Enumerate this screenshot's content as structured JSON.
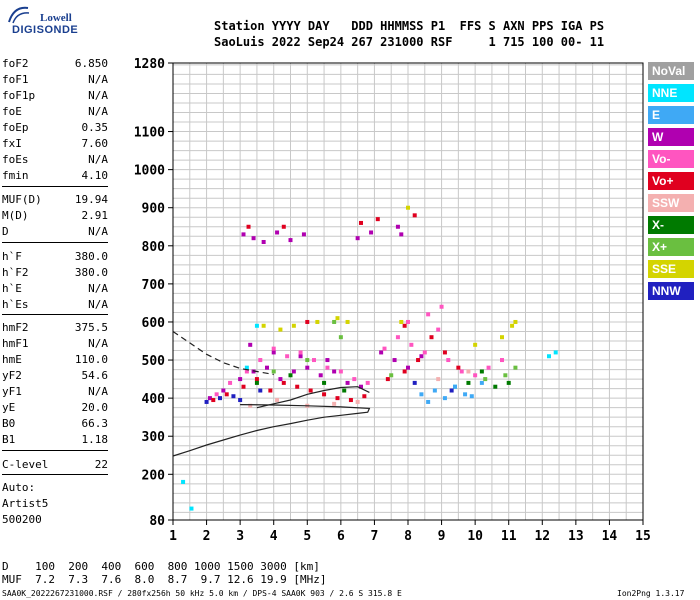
{
  "logo": {
    "line1": "Lowell",
    "line2": "DIGISONDE",
    "color": "#1a3f8f"
  },
  "header": {
    "line1": "Station YYYY DAY   DDD HHMMSS P1  FFS S AXN PPS IGA PS",
    "line2": "SaoLuis 2022 Sep24 267 231000 RSF     1 715 100 00- 11"
  },
  "params": [
    {
      "label": "foF2",
      "value": "6.850"
    },
    {
      "label": "foF1",
      "value": "N/A"
    },
    {
      "label": "foF1p",
      "value": "N/A"
    },
    {
      "label": "foE",
      "value": "N/A"
    },
    {
      "label": "foEp",
      "value": "0.35"
    },
    {
      "label": "fxI",
      "value": "7.60"
    },
    {
      "label": "foEs",
      "value": "N/A"
    },
    {
      "label": "fmin",
      "value": "4.10"
    },
    {
      "label": "MUF(D)",
      "value": "19.94"
    },
    {
      "label": "M(D)",
      "value": "2.91"
    },
    {
      "label": "D",
      "value": "N/A"
    },
    {
      "label": "h`F",
      "value": "380.0"
    },
    {
      "label": "h`F2",
      "value": "380.0"
    },
    {
      "label": "h`E",
      "value": "N/A"
    },
    {
      "label": "h`Es",
      "value": "N/A"
    },
    {
      "label": "hmF2",
      "value": "375.5"
    },
    {
      "label": "hmF1",
      "value": "N/A"
    },
    {
      "label": "hmE",
      "value": "110.0"
    },
    {
      "label": "yF2",
      "value": "54.6"
    },
    {
      "label": "yF1",
      "value": "N/A"
    },
    {
      "label": "yE",
      "value": "20.0"
    },
    {
      "label": "B0",
      "value": "66.3"
    },
    {
      "label": "B1",
      "value": "1.18"
    },
    {
      "label": "C-level",
      "value": "22"
    }
  ],
  "autoscaling": {
    "line1": "Auto:",
    "line2": "Artist5",
    "line3": "500200"
  },
  "legend": [
    {
      "label": "NoVal",
      "color": "#a0a0a0"
    },
    {
      "label": "NNE",
      "color": "#00e5ff"
    },
    {
      "label": "E",
      "color": "#3fa9f5"
    },
    {
      "label": "W",
      "color": "#b000b0"
    },
    {
      "label": "Vo-",
      "color": "#ff55c0"
    },
    {
      "label": "Vo+",
      "color": "#e0001f"
    },
    {
      "label": "SSW",
      "color": "#f4b0b0"
    },
    {
      "label": "X-",
      "color": "#007a00"
    },
    {
      "label": "X+",
      "color": "#6abf40"
    },
    {
      "label": "SSE",
      "color": "#d4d400"
    },
    {
      "label": "NNW",
      "color": "#2020c0"
    }
  ],
  "bottom": {
    "d_row": "D    100  200  400  600  800 1000 1500 3000 [km]",
    "muf_row": "MUF  7.2  7.3  7.6  8.0  8.7  9.7 12.6 19.9 [MHz]"
  },
  "footer": {
    "left": "SAA0K_2022267231000.RSF / 280fx256h 50 kHz 5.0 km / DPS-4 SAA0K 903 / 2.6 S 315.8 E",
    "right": "Ion2Png 1.3.17"
  },
  "chart_data": {
    "type": "scatter",
    "xlabel": "",
    "ylabel": "",
    "xlim": [
      1,
      15
    ],
    "ylim": [
      80,
      1280
    ],
    "x_ticks": [
      1,
      2,
      3,
      4,
      5,
      6,
      7,
      8,
      9,
      10,
      11,
      12,
      13,
      14,
      15
    ],
    "y_ticks": [
      80,
      200,
      300,
      400,
      500,
      600,
      700,
      800,
      900,
      1000,
      1100,
      1280
    ],
    "grid": true,
    "series": [
      {
        "name": "NNE",
        "points": [
          [
            1.3,
            180
          ],
          [
            1.55,
            110
          ],
          [
            3.2,
            480
          ],
          [
            3.5,
            590
          ],
          [
            9.4,
            430
          ],
          [
            12.2,
            510
          ],
          [
            12.4,
            520
          ]
        ]
      },
      {
        "name": "E",
        "points": [
          [
            8.4,
            410
          ],
          [
            8.8,
            420
          ],
          [
            9.1,
            400
          ],
          [
            9.4,
            430
          ],
          [
            9.7,
            410
          ],
          [
            10.2,
            440
          ],
          [
            8.6,
            390
          ],
          [
            9.9,
            405
          ]
        ]
      },
      {
        "name": "W",
        "points": [
          [
            2.1,
            400
          ],
          [
            2.5,
            420
          ],
          [
            3.0,
            450
          ],
          [
            3.4,
            470
          ],
          [
            3.8,
            480
          ],
          [
            4.2,
            450
          ],
          [
            4.6,
            470
          ],
          [
            5.0,
            480
          ],
          [
            5.4,
            460
          ],
          [
            5.8,
            470
          ],
          [
            6.2,
            440
          ],
          [
            6.6,
            430
          ],
          [
            7.2,
            520
          ],
          [
            7.6,
            500
          ],
          [
            8.0,
            480
          ],
          [
            8.4,
            510
          ],
          [
            3.1,
            830
          ],
          [
            3.4,
            820
          ],
          [
            3.7,
            810
          ],
          [
            4.1,
            835
          ],
          [
            4.5,
            815
          ],
          [
            4.9,
            830
          ],
          [
            6.5,
            820
          ],
          [
            6.9,
            835
          ],
          [
            7.7,
            850
          ],
          [
            7.8,
            830
          ],
          [
            3.3,
            540
          ],
          [
            4.0,
            520
          ],
          [
            4.8,
            510
          ],
          [
            5.6,
            500
          ]
        ]
      },
      {
        "name": "Vo-",
        "points": [
          [
            2.3,
            410
          ],
          [
            2.7,
            440
          ],
          [
            3.2,
            470
          ],
          [
            3.6,
            500
          ],
          [
            4.0,
            530
          ],
          [
            4.4,
            510
          ],
          [
            4.8,
            520
          ],
          [
            5.2,
            500
          ],
          [
            5.6,
            480
          ],
          [
            6.0,
            470
          ],
          [
            6.4,
            450
          ],
          [
            6.8,
            440
          ],
          [
            7.3,
            530
          ],
          [
            7.7,
            560
          ],
          [
            8.1,
            540
          ],
          [
            8.5,
            520
          ],
          [
            8.9,
            580
          ],
          [
            9.2,
            500
          ],
          [
            9.6,
            470
          ],
          [
            10.0,
            460
          ],
          [
            10.4,
            480
          ],
          [
            10.8,
            500
          ],
          [
            8.0,
            600
          ],
          [
            8.6,
            620
          ],
          [
            9.0,
            640
          ]
        ]
      },
      {
        "name": "Vo+",
        "points": [
          [
            2.2,
            395
          ],
          [
            2.6,
            410
          ],
          [
            3.1,
            430
          ],
          [
            3.5,
            450
          ],
          [
            3.9,
            420
          ],
          [
            4.3,
            440
          ],
          [
            4.7,
            430
          ],
          [
            5.1,
            420
          ],
          [
            5.5,
            410
          ],
          [
            5.9,
            400
          ],
          [
            6.3,
            395
          ],
          [
            6.7,
            405
          ],
          [
            7.4,
            450
          ],
          [
            7.9,
            470
          ],
          [
            8.3,
            500
          ],
          [
            8.7,
            560
          ],
          [
            9.1,
            520
          ],
          [
            9.5,
            480
          ],
          [
            3.25,
            850
          ],
          [
            4.3,
            850
          ],
          [
            6.6,
            860
          ],
          [
            7.1,
            870
          ],
          [
            8.2,
            880
          ],
          [
            5.0,
            600
          ],
          [
            7.9,
            590
          ]
        ]
      },
      {
        "name": "SSW",
        "points": [
          [
            3.3,
            380
          ],
          [
            4.1,
            395
          ],
          [
            5.0,
            380
          ],
          [
            5.8,
            385
          ],
          [
            6.5,
            390
          ],
          [
            8.9,
            450
          ],
          [
            9.8,
            470
          ]
        ]
      },
      {
        "name": "X-",
        "points": [
          [
            3.5,
            440
          ],
          [
            4.5,
            460
          ],
          [
            5.5,
            440
          ],
          [
            6.1,
            420
          ],
          [
            9.8,
            440
          ],
          [
            10.6,
            430
          ],
          [
            11.0,
            440
          ],
          [
            10.2,
            470
          ]
        ]
      },
      {
        "name": "X+",
        "points": [
          [
            4.0,
            470
          ],
          [
            5.0,
            500
          ],
          [
            6.0,
            560
          ],
          [
            7.5,
            460
          ],
          [
            10.3,
            450
          ],
          [
            10.9,
            460
          ],
          [
            11.2,
            480
          ],
          [
            5.8,
            600
          ]
        ]
      },
      {
        "name": "SSE",
        "points": [
          [
            3.7,
            590
          ],
          [
            4.2,
            580
          ],
          [
            4.6,
            590
          ],
          [
            5.3,
            600
          ],
          [
            5.9,
            610
          ],
          [
            6.2,
            600
          ],
          [
            10.0,
            540
          ],
          [
            10.8,
            560
          ],
          [
            11.1,
            590
          ],
          [
            11.2,
            600
          ],
          [
            8.0,
            900
          ],
          [
            7.8,
            600
          ]
        ]
      },
      {
        "name": "NNW",
        "points": [
          [
            2.0,
            390
          ],
          [
            2.4,
            400
          ],
          [
            2.8,
            405
          ],
          [
            3.0,
            395
          ],
          [
            3.6,
            420
          ],
          [
            8.2,
            440
          ],
          [
            9.3,
            420
          ]
        ]
      }
    ],
    "profile_curve": {
      "name": "",
      "style": "solid",
      "points": [
        [
          1.0,
          248
        ],
        [
          1.5,
          262
        ],
        [
          2.0,
          277
        ],
        [
          2.5,
          290
        ],
        [
          3.0,
          303
        ],
        [
          3.5,
          315
        ],
        [
          4.0,
          325
        ],
        [
          4.5,
          333
        ],
        [
          5.0,
          342
        ],
        [
          5.5,
          350
        ],
        [
          6.0,
          355
        ],
        [
          6.5,
          360
        ],
        [
          6.8,
          363
        ],
        [
          6.85,
          373
        ],
        [
          6.0,
          377
        ],
        [
          5.0,
          380
        ],
        [
          4.0,
          382
        ],
        [
          3.0,
          383
        ]
      ]
    },
    "upper_curve": {
      "name": "",
      "style": "solid",
      "points": [
        [
          3.5,
          375
        ],
        [
          4.0,
          385
        ],
        [
          4.5,
          395
        ],
        [
          5.0,
          410
        ],
        [
          5.5,
          420
        ],
        [
          6.0,
          428
        ],
        [
          6.5,
          430
        ],
        [
          6.85,
          415
        ]
      ]
    },
    "dashed_curve": {
      "name": "",
      "style": "dashed",
      "points": [
        [
          1.0,
          575
        ],
        [
          1.5,
          545
        ],
        [
          2.0,
          515
        ],
        [
          2.5,
          493
        ],
        [
          3.0,
          478
        ],
        [
          3.5,
          470
        ],
        [
          4.0,
          462
        ]
      ]
    }
  }
}
